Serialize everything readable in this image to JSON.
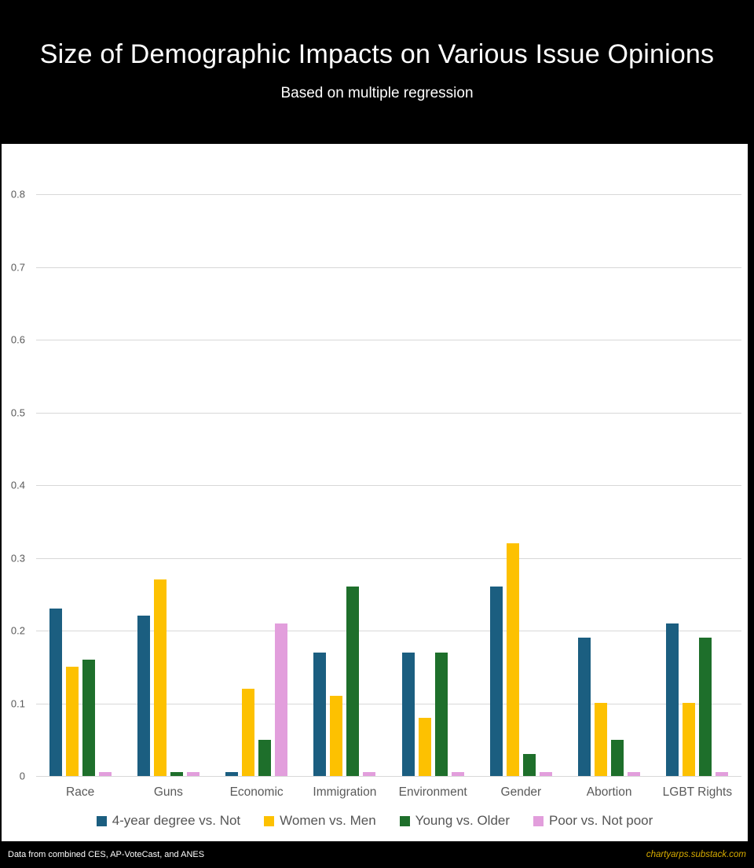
{
  "header": {
    "title": "Size of Demographic Impacts on Various Issue Opinions",
    "subtitle": "Based on multiple regression"
  },
  "chart_data": {
    "type": "bar",
    "title": "Size of Demographic Impacts on Various Issue Opinions",
    "subtitle": "Based on multiple regression",
    "categories": [
      "Race",
      "Guns",
      "Economic",
      "Immigration",
      "Environment",
      "Gender",
      "Abortion",
      "LGBT Rights"
    ],
    "series": [
      {
        "name": "4-year degree vs. Not",
        "color": "#1b5e80",
        "values": [
          0.23,
          0.22,
          0.005,
          0.17,
          0.17,
          0.26,
          0.19,
          0.21
        ]
      },
      {
        "name": "Women vs. Men",
        "color": "#fdc101",
        "values": [
          0.15,
          0.27,
          0.12,
          0.11,
          0.08,
          0.32,
          0.1,
          0.1
        ]
      },
      {
        "name": "Young vs. Older",
        "color": "#1e6f2b",
        "values": [
          0.16,
          0.005,
          0.05,
          0.26,
          0.17,
          0.03,
          0.05,
          0.19
        ]
      },
      {
        "name": "Poor vs. Not poor",
        "color": "#e29edc",
        "values": [
          0.005,
          0.005,
          0.21,
          0.005,
          0.005,
          0.005,
          0.005,
          0.005
        ]
      }
    ],
    "xlabel": "",
    "ylabel": "",
    "ylim": [
      0,
      0.85
    ],
    "yticks": [
      0,
      0.1,
      0.2,
      0.3,
      0.4,
      0.5,
      0.6,
      0.7,
      0.8
    ],
    "grid": true,
    "legend_position": "bottom",
    "gridline_color": "#d8d8d8",
    "tick_label_color": "#595959",
    "x_label_color": "#595959",
    "legend_text_color": "#555555",
    "plot_background": "#ffffff"
  },
  "footer": {
    "source": "Data from combined CES, AP-VoteCast, and ANES",
    "site": "chartyarps.substack.com",
    "site_color": "#d9ad00",
    "background": "#000000"
  }
}
